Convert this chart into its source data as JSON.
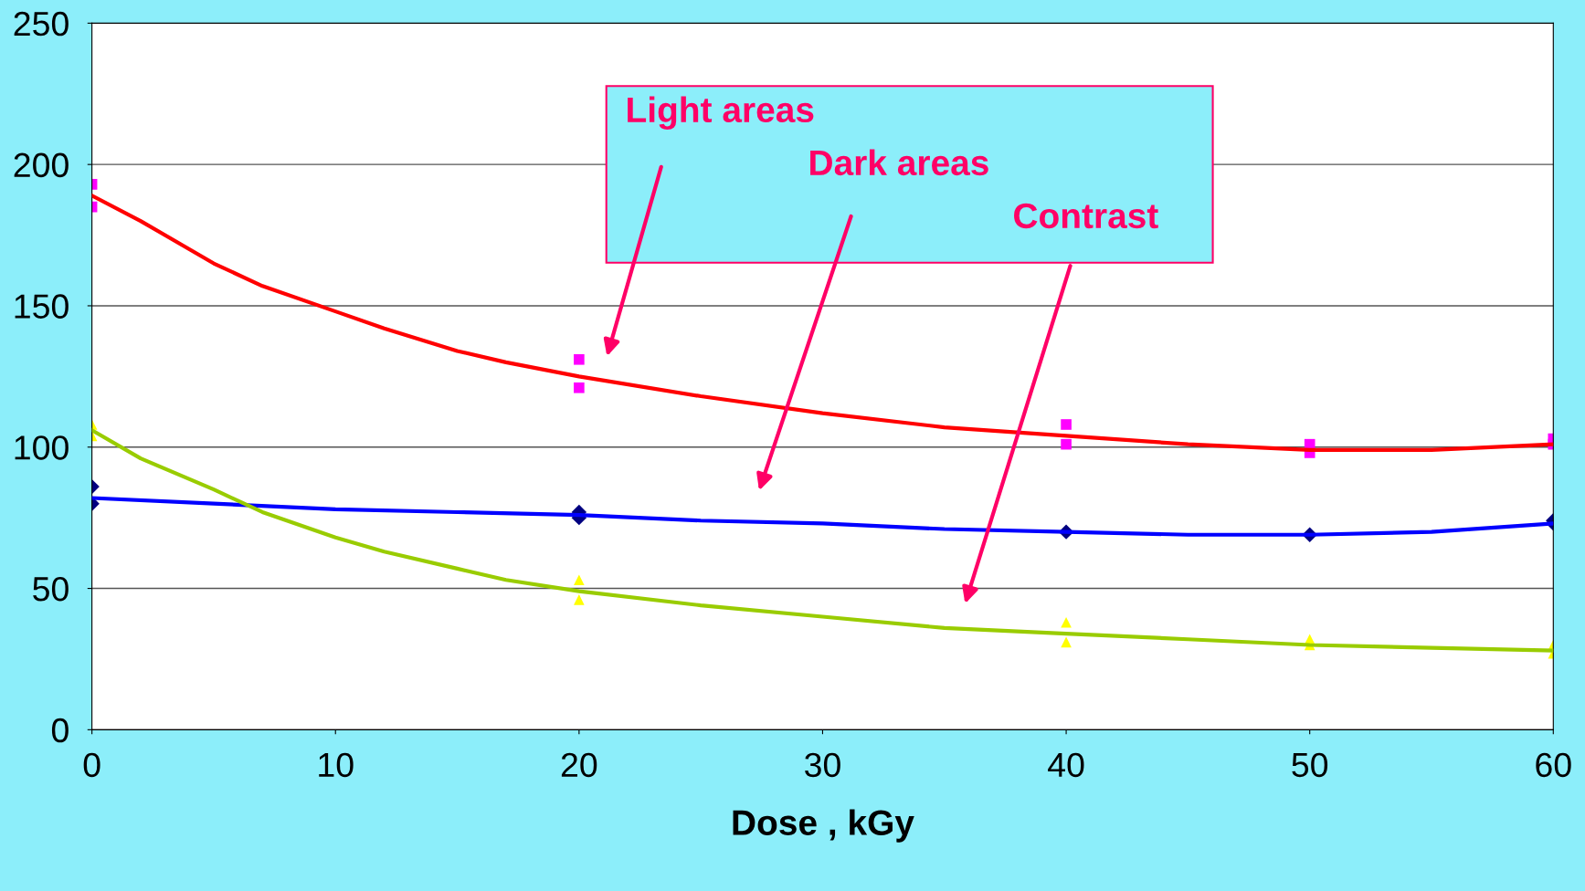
{
  "chart_data": {
    "type": "line",
    "xlabel": "Dose , kGy",
    "xlim": [
      0,
      60
    ],
    "xticks": [
      0,
      10,
      20,
      30,
      40,
      50,
      60
    ],
    "ylim": [
      0,
      250
    ],
    "yticks": [
      0,
      50,
      100,
      150,
      200,
      250
    ],
    "grid": "y",
    "legend": false,
    "series": [
      {
        "type": "scatter",
        "marker": "square",
        "color": "#ff00ff",
        "x": [
          0,
          0,
          20,
          20,
          40,
          40,
          50,
          50,
          60,
          60
        ],
        "values": [
          193,
          185,
          131,
          121,
          108,
          101,
          101,
          98,
          103,
          101
        ]
      },
      {
        "type": "scatter",
        "marker": "diamond",
        "color": "#000080",
        "x": [
          0,
          0,
          20,
          20,
          40,
          50,
          60,
          60
        ],
        "values": [
          86,
          80,
          77,
          75,
          70,
          69,
          74,
          73
        ]
      },
      {
        "type": "scatter",
        "marker": "triangle",
        "color": "#ffff00",
        "x": [
          0,
          0,
          20,
          20,
          40,
          40,
          50,
          50,
          60,
          60
        ],
        "values": [
          108,
          104,
          53,
          46,
          38,
          31,
          32,
          30,
          30,
          27
        ]
      },
      {
        "color": "#ff0000",
        "x": [
          0,
          2,
          5,
          7,
          10,
          12,
          15,
          17,
          20,
          25,
          30,
          35,
          40,
          45,
          50,
          55,
          60
        ],
        "values": [
          189,
          180,
          165,
          157,
          148,
          142,
          134,
          130,
          125,
          118,
          112,
          107,
          104,
          101,
          99,
          99,
          101
        ]
      },
      {
        "color": "#0000ff",
        "x": [
          0,
          5,
          10,
          15,
          20,
          25,
          30,
          35,
          40,
          45,
          50,
          55,
          60
        ],
        "values": [
          82,
          80,
          78,
          77,
          76,
          74,
          73,
          71,
          70,
          69,
          69,
          70,
          73
        ]
      },
      {
        "color": "#99cc00",
        "x": [
          0,
          2,
          5,
          7,
          10,
          12,
          15,
          17,
          20,
          25,
          30,
          35,
          40,
          45,
          50,
          55,
          60
        ],
        "values": [
          106,
          96,
          85,
          77,
          68,
          63,
          57,
          53,
          49,
          44,
          40,
          36,
          34,
          32,
          30,
          29,
          28
        ]
      }
    ],
    "annotations": [
      "Light areas",
      "Dark areas",
      "Contrast"
    ]
  }
}
